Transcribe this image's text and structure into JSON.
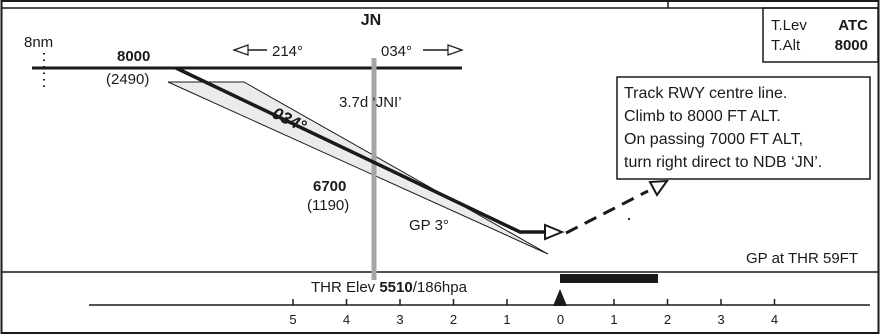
{
  "profile": {
    "fix_name": "JN",
    "dist_label": "8nm",
    "bearing_out": "214°",
    "bearing_in": "034°",
    "alt_8000": "8000",
    "alt_8000_height": "(2490)",
    "track_label": "034°",
    "dme_label": "3.7d ‘JNI’",
    "alt_6700": "6700",
    "alt_6700_height": "(1190)",
    "gp_label": "GP 3°",
    "gp_thr": "GP at THR 59FT",
    "thr_elev_prefix": "THR Elev ",
    "thr_elev_value": "5510",
    "thr_elev_suffix": "/186hpa"
  },
  "missed_approach": {
    "lines": [
      "Track RWY centre line.",
      "Climb to 8000 FT ALT.",
      "On passing 7000 FT ALT,",
      "turn right direct to NDB ‘JN’."
    ]
  },
  "transition_box": {
    "t_lev_label": "T.Lev",
    "t_lev_value": "ATC",
    "t_alt_label": "T.Alt",
    "t_alt_value": "8000"
  },
  "scale": {
    "ticks": [
      "5",
      "4",
      "3",
      "2",
      "1",
      "0",
      "1",
      "2",
      "3",
      "4"
    ]
  },
  "colors": {
    "ink": "#1a1a1a",
    "dme_line": "#a6a6a6",
    "wedge_fill": "#ebebeb"
  }
}
